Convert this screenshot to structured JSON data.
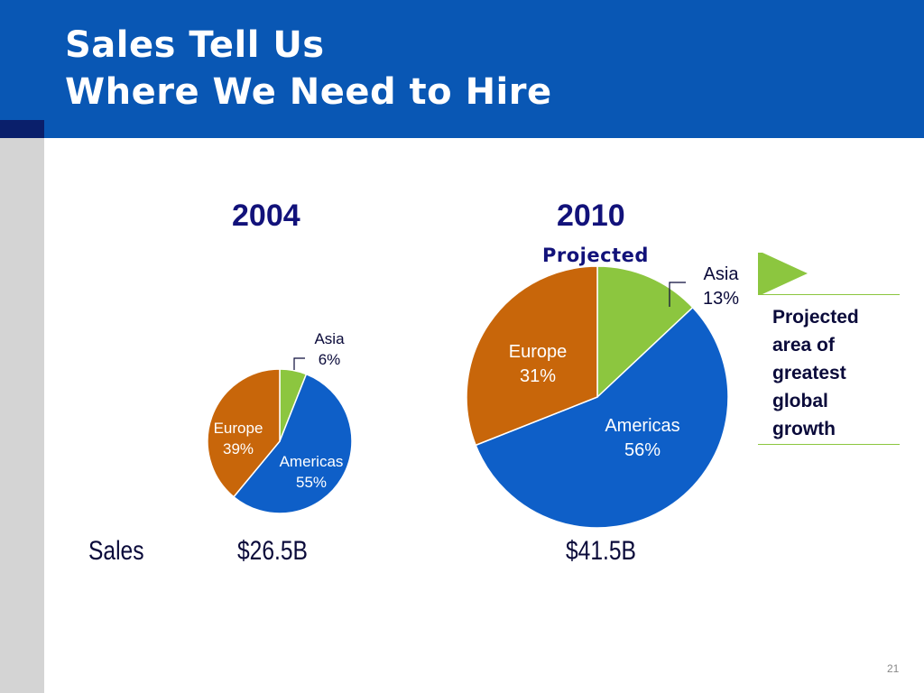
{
  "slide": {
    "title_line1": "Sales Tell Us",
    "title_line2": "Where We Need to Hire",
    "page_number": "21"
  },
  "colors": {
    "header_blue": "#0957b4",
    "navy": "#12127a",
    "asia": "#8cc63f",
    "americas": "#0e5fc8",
    "europe": "#c8660a"
  },
  "chart_data": [
    {
      "type": "pie",
      "title": "2004",
      "subtitle": "",
      "total_label": "$26.5B",
      "slices": [
        {
          "label": "Asia",
          "value": 6,
          "value_label": "6%",
          "color": "#8cc63f"
        },
        {
          "label": "Americas",
          "value": 55,
          "value_label": "55%",
          "color": "#0e5fc8"
        },
        {
          "label": "Europe",
          "value": 39,
          "value_label": "39%",
          "color": "#c8660a"
        }
      ]
    },
    {
      "type": "pie",
      "title": "2010",
      "subtitle": "Projected",
      "total_label": "$41.5B",
      "slices": [
        {
          "label": "Asia",
          "value": 13,
          "value_label": "13%",
          "color": "#8cc63f"
        },
        {
          "label": "Americas",
          "value": 56,
          "value_label": "56%",
          "color": "#0e5fc8"
        },
        {
          "label": "Europe",
          "value": 31,
          "value_label": "31%",
          "color": "#c8660a"
        }
      ]
    }
  ],
  "sales_label": "Sales",
  "callout": {
    "lines": [
      "Projected",
      "area of",
      "greatest",
      "global",
      "growth"
    ],
    "icon": "flag-icon"
  }
}
